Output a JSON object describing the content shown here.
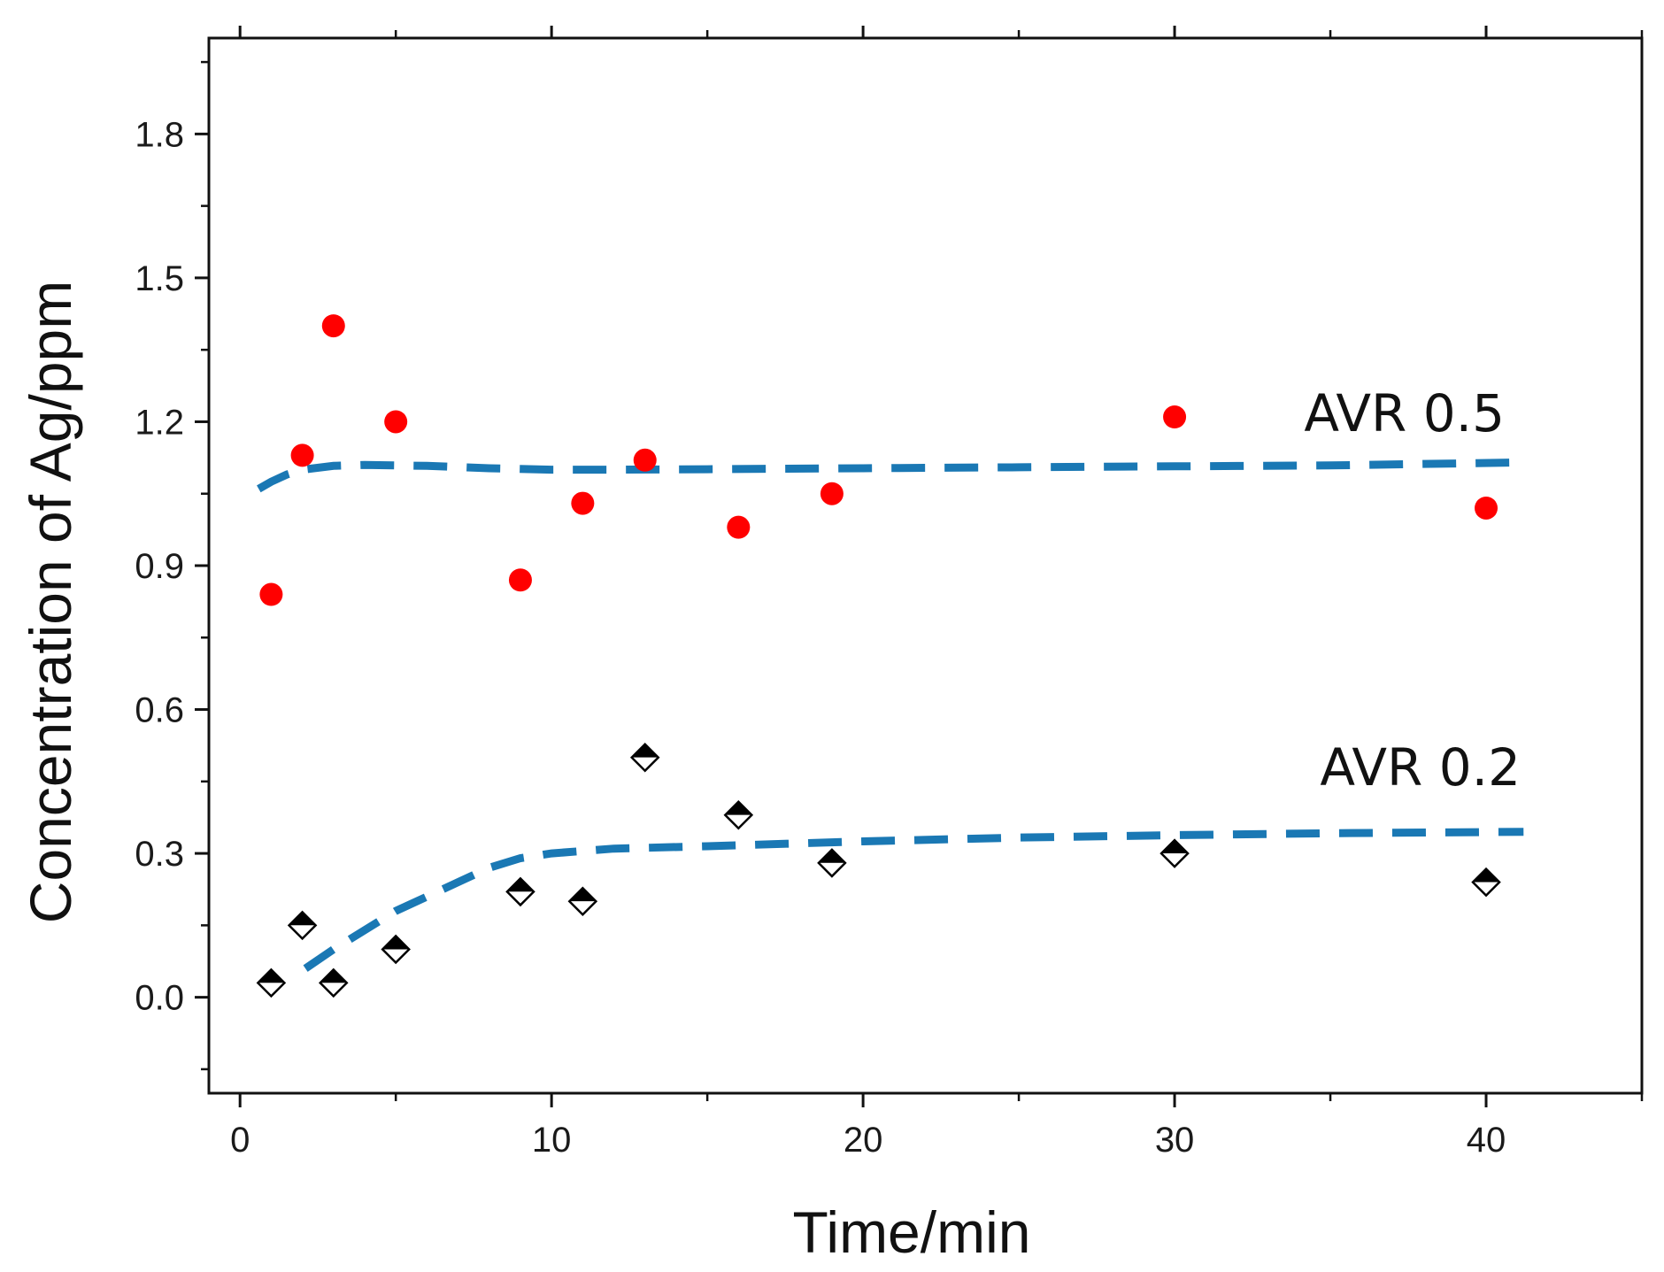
{
  "chart_data": {
    "type": "scatter",
    "title": "",
    "xlabel": "Time/min",
    "ylabel": "Concentration of Ag/ppm",
    "xlim": [
      -1,
      45
    ],
    "ylim": [
      -0.2,
      2.0
    ],
    "xticks": [
      0,
      10,
      20,
      30,
      40
    ],
    "xtick_labels": [
      "0",
      "10",
      "20",
      "30",
      "40"
    ],
    "yticks": [
      0.0,
      0.3,
      0.6,
      0.9,
      1.2,
      1.5,
      1.8
    ],
    "ytick_labels": [
      "0.0",
      "0.3",
      "0.6",
      "0.9",
      "1.2",
      "1.5",
      "1.8"
    ],
    "grid": false,
    "series": [
      {
        "name": "AVR 0.5",
        "marker": "circle",
        "color": "#ff0000",
        "x": [
          1,
          2,
          3,
          5,
          9,
          11,
          13,
          16,
          19,
          30,
          40
        ],
        "y": [
          0.84,
          1.13,
          1.4,
          1.2,
          0.87,
          1.03,
          1.12,
          0.98,
          1.05,
          1.21,
          1.02
        ]
      },
      {
        "name": "AVR 0.2",
        "marker": "half-filled diamond",
        "color": "#000000",
        "x": [
          1,
          2,
          3,
          5,
          9,
          11,
          13,
          16,
          19,
          30,
          40
        ],
        "y": [
          0.03,
          0.15,
          0.03,
          0.1,
          0.22,
          0.2,
          0.5,
          0.38,
          0.28,
          0.3,
          0.24
        ]
      }
    ],
    "fits": [
      {
        "name": "AVR 0.5 fit",
        "color": "#1a78b4",
        "x": [
          0.6,
          1,
          1.5,
          2,
          3,
          4,
          6,
          8,
          10,
          12,
          15,
          20,
          25,
          30,
          35,
          41
        ],
        "y": [
          1.06,
          1.075,
          1.09,
          1.1,
          1.108,
          1.11,
          1.108,
          1.103,
          1.1,
          1.1,
          1.101,
          1.103,
          1.105,
          1.107,
          1.109,
          1.115
        ]
      },
      {
        "name": "AVR 0.2 fit",
        "color": "#1a78b4",
        "x": [
          2.1,
          3,
          4,
          5,
          6,
          7,
          8,
          9,
          10,
          12,
          15,
          20,
          25,
          30,
          35,
          41.2
        ],
        "y": [
          0.06,
          0.1,
          0.14,
          0.18,
          0.21,
          0.24,
          0.27,
          0.29,
          0.3,
          0.31,
          0.315,
          0.325,
          0.333,
          0.338,
          0.342,
          0.345
        ]
      }
    ],
    "annotations": [
      "AVR 0.5",
      "AVR 0.2"
    ]
  }
}
